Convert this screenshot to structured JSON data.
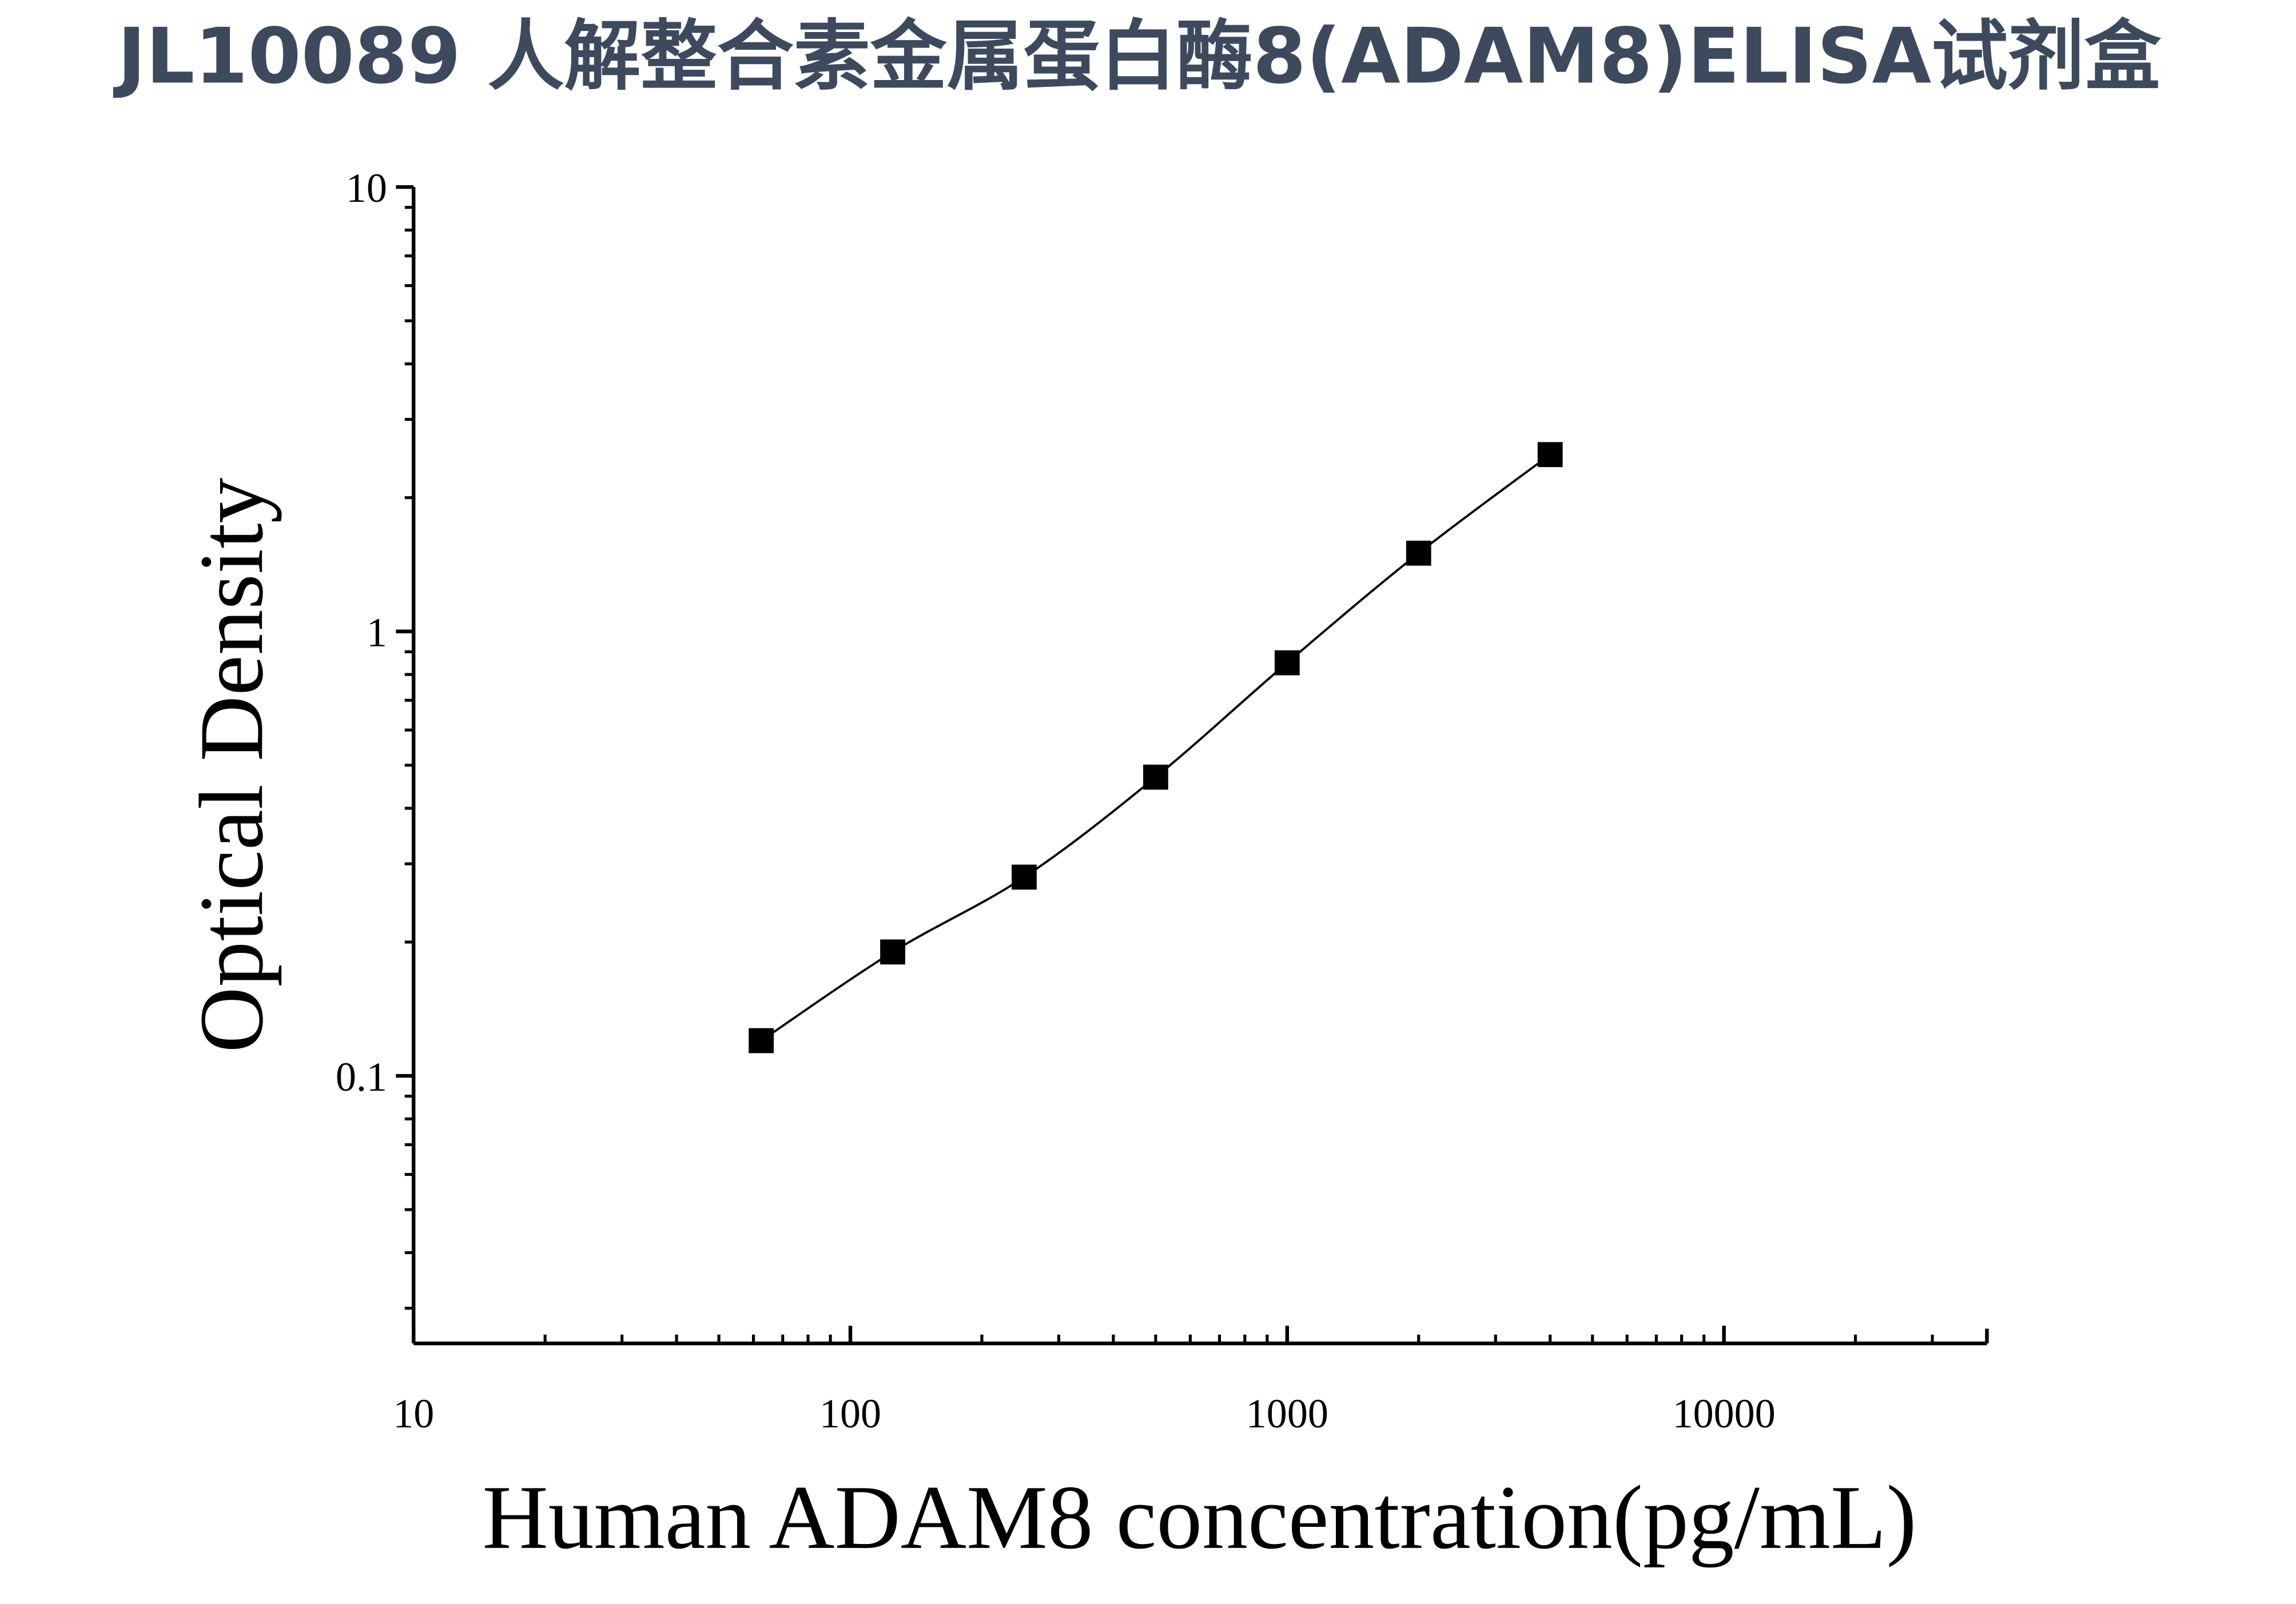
{
  "chart_data": {
    "type": "scatter",
    "title": "JL10089 人解整合素金属蛋白酶8(ADAM8)ELISA试剂盒",
    "x_label": "Human ADAM8 concentration(pg/mL)",
    "y_label": "Optical Density",
    "x": [
      62.5,
      125,
      250,
      500,
      1000,
      2000,
      4000
    ],
    "values": [
      0.12,
      0.19,
      0.28,
      0.47,
      0.85,
      1.5,
      2.5
    ],
    "color": "#000000",
    "xlim": [
      10,
      40000
    ],
    "ylim": [
      0.025,
      10
    ],
    "xticks": [
      10,
      100,
      1000,
      10000
    ],
    "yticks": [
      0.1,
      1,
      10
    ],
    "log_x": true,
    "log_y": true,
    "fit_line": true
  }
}
